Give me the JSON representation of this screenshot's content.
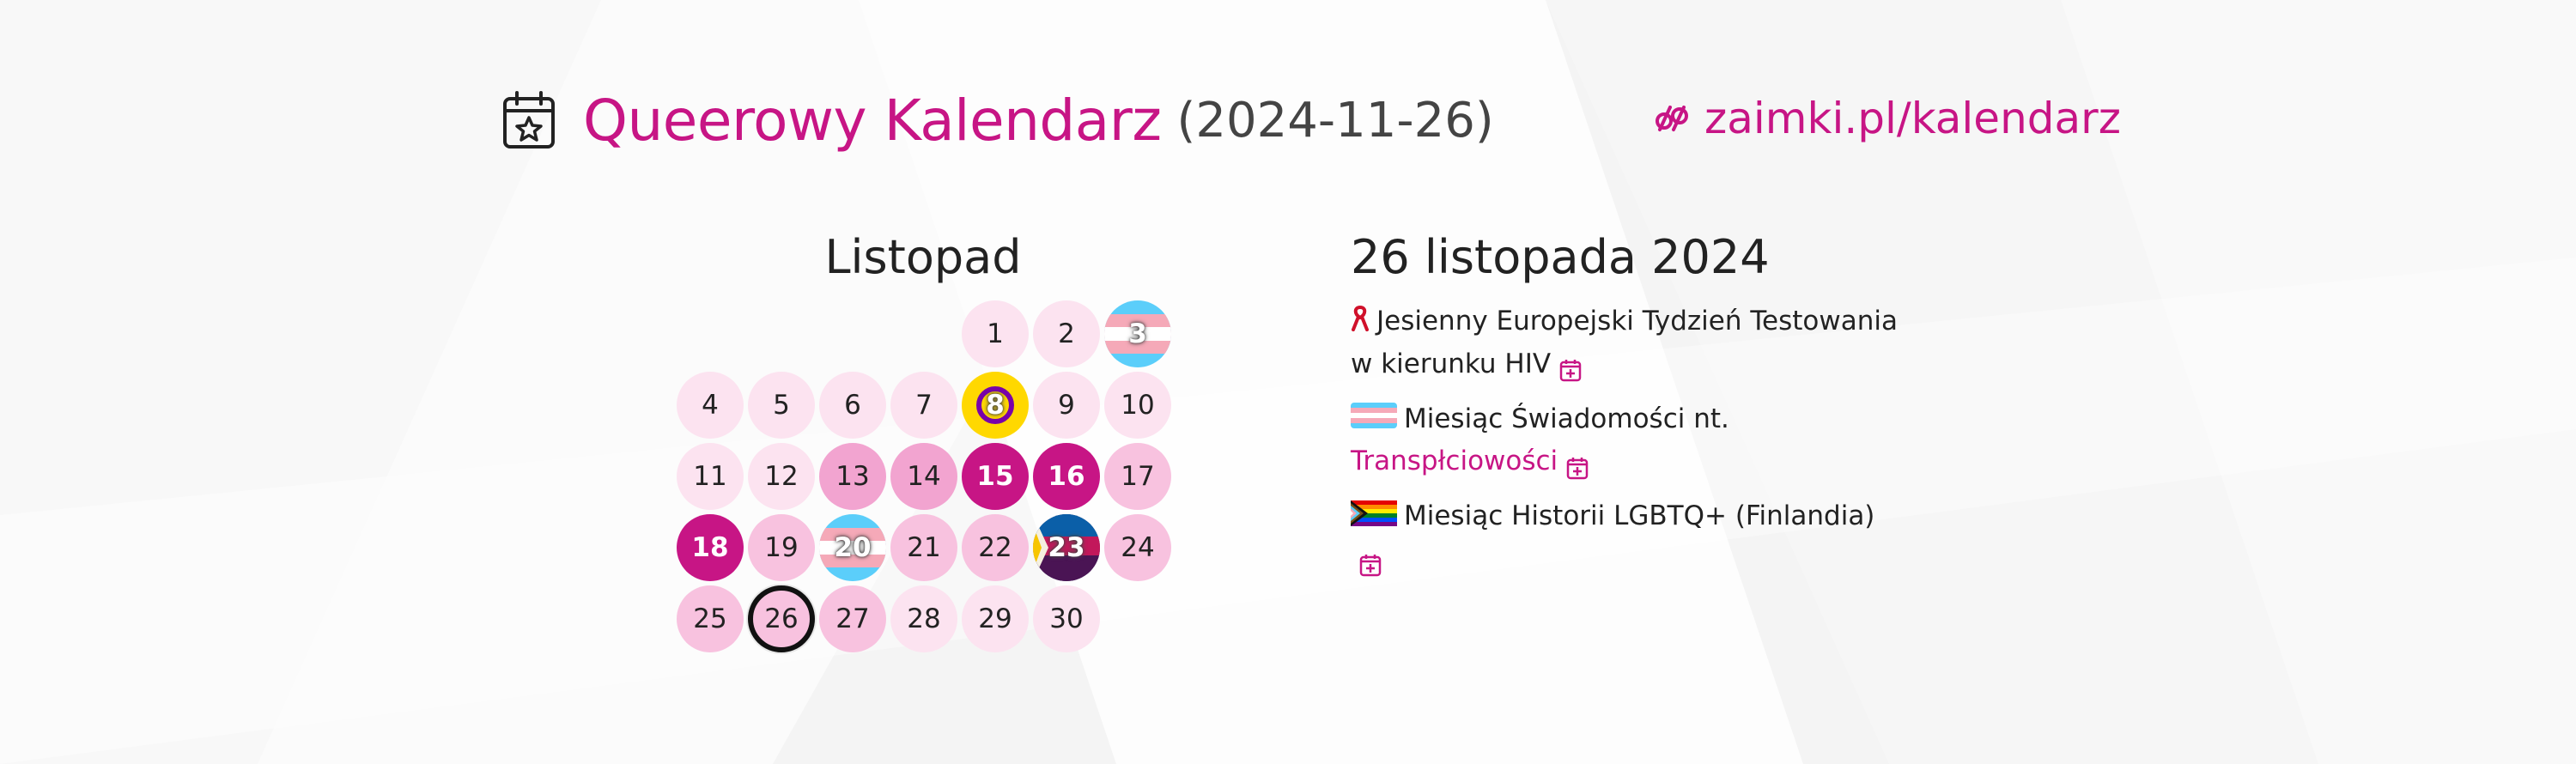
{
  "header": {
    "title": "Queerowy Kalendarz",
    "date": "(2024-11-26)",
    "site": "zaimki.pl/kalendarz",
    "calendar_icon": "calendar-star-icon",
    "site_icon": "pronouns-logo-icon"
  },
  "calendar": {
    "month": "Listopad",
    "days": [
      {
        "n": "1",
        "col": 4,
        "row": 0,
        "shade": 0
      },
      {
        "n": "2",
        "col": 5,
        "row": 0,
        "shade": 0
      },
      {
        "n": "3",
        "col": 6,
        "row": 0,
        "flag": "trans"
      },
      {
        "n": "4",
        "col": 0,
        "row": 1,
        "shade": 0
      },
      {
        "n": "5",
        "col": 1,
        "row": 1,
        "shade": 0
      },
      {
        "n": "6",
        "col": 2,
        "row": 1,
        "shade": 0
      },
      {
        "n": "7",
        "col": 3,
        "row": 1,
        "shade": 0
      },
      {
        "n": "8",
        "col": 4,
        "row": 1,
        "flag": "intersex"
      },
      {
        "n": "9",
        "col": 5,
        "row": 1,
        "shade": 0
      },
      {
        "n": "10",
        "col": 6,
        "row": 1,
        "shade": 0
      },
      {
        "n": "11",
        "col": 0,
        "row": 2,
        "shade": 0
      },
      {
        "n": "12",
        "col": 1,
        "row": 2,
        "shade": 0
      },
      {
        "n": "13",
        "col": 2,
        "row": 2,
        "shade": 2
      },
      {
        "n": "14",
        "col": 3,
        "row": 2,
        "shade": 2
      },
      {
        "n": "15",
        "col": 4,
        "row": 2,
        "shade": 3
      },
      {
        "n": "16",
        "col": 5,
        "row": 2,
        "shade": 3
      },
      {
        "n": "17",
        "col": 6,
        "row": 2,
        "shade": 1
      },
      {
        "n": "18",
        "col": 0,
        "row": 3,
        "shade": 3
      },
      {
        "n": "19",
        "col": 1,
        "row": 3,
        "shade": 1
      },
      {
        "n": "20",
        "col": 2,
        "row": 3,
        "flag": "trans"
      },
      {
        "n": "21",
        "col": 3,
        "row": 3,
        "shade": 1
      },
      {
        "n": "22",
        "col": 4,
        "row": 3,
        "shade": 1
      },
      {
        "n": "23",
        "col": 5,
        "row": 3,
        "flag": "multi"
      },
      {
        "n": "24",
        "col": 6,
        "row": 3,
        "shade": 1
      },
      {
        "n": "25",
        "col": 0,
        "row": 4,
        "shade": 1
      },
      {
        "n": "26",
        "col": 1,
        "row": 4,
        "shade": 1,
        "today": true
      },
      {
        "n": "27",
        "col": 2,
        "row": 4,
        "shade": 1
      },
      {
        "n": "28",
        "col": 3,
        "row": 4,
        "shade": 0
      },
      {
        "n": "29",
        "col": 4,
        "row": 4,
        "shade": 0
      },
      {
        "n": "30",
        "col": 5,
        "row": 4,
        "shade": 0
      }
    ]
  },
  "detail": {
    "date": "26 listopada 2024",
    "events": [
      {
        "icon": "red-ribbon-icon",
        "text": "Jesienny Europejski Tydzień Testowania w kierunku HIV",
        "link": ""
      },
      {
        "icon": "trans-flag-icon",
        "text": "Miesiąc Świadomości nt. ",
        "link": "Transpłciowości"
      },
      {
        "icon": "progress-pride-flag-icon",
        "text": "Miesiąc Historii LGBTQ+ (Finlandia)",
        "link": ""
      }
    ]
  },
  "colors": {
    "accent": "#c71585",
    "shade0": "#fce3f0",
    "shade1": "#f8c2df",
    "shade2": "#f2a4d0",
    "trans_blue": "#5bcefa",
    "trans_pink": "#f5a9b8",
    "intersex_yellow": "#ffd800",
    "intersex_purple": "#7902aa"
  }
}
